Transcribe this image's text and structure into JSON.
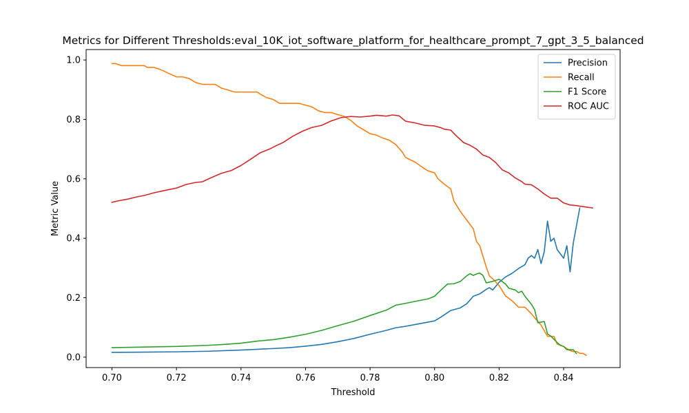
{
  "chart_data": {
    "type": "line",
    "title": "Metrics for Different Thresholds:eval_10K_iot_software_platform_for_healthcare_prompt_7_gpt_3_5_balanced",
    "xlabel": "Threshold",
    "ylabel": "Metric Value",
    "xlim": [
      0.692,
      0.8575
    ],
    "ylim": [
      -0.035,
      1.035
    ],
    "x_ticks": [
      0.7,
      0.72,
      0.74,
      0.76,
      0.78,
      0.8,
      0.82,
      0.84
    ],
    "x_tick_labels": [
      "0.70",
      "0.72",
      "0.74",
      "0.76",
      "0.78",
      "0.80",
      "0.82",
      "0.84"
    ],
    "y_ticks": [
      0.0,
      0.2,
      0.4,
      0.6,
      0.8,
      1.0
    ],
    "y_tick_labels": [
      "0.0",
      "0.2",
      "0.4",
      "0.6",
      "0.8",
      "1.0"
    ],
    "grid": false,
    "legend_position": "top-right",
    "series": [
      {
        "name": "Precision",
        "color": "#1f77b4",
        "points": [
          [
            0.7,
            0.016
          ],
          [
            0.71,
            0.017
          ],
          [
            0.72,
            0.018
          ],
          [
            0.73,
            0.02
          ],
          [
            0.74,
            0.024
          ],
          [
            0.75,
            0.029
          ],
          [
            0.755,
            0.032
          ],
          [
            0.76,
            0.037
          ],
          [
            0.765,
            0.043
          ],
          [
            0.77,
            0.052
          ],
          [
            0.775,
            0.063
          ],
          [
            0.78,
            0.077
          ],
          [
            0.785,
            0.09
          ],
          [
            0.788,
            0.099
          ],
          [
            0.79,
            0.102
          ],
          [
            0.795,
            0.112
          ],
          [
            0.8,
            0.122
          ],
          [
            0.802,
            0.135
          ],
          [
            0.805,
            0.157
          ],
          [
            0.808,
            0.166
          ],
          [
            0.81,
            0.18
          ],
          [
            0.812,
            0.205
          ],
          [
            0.814,
            0.213
          ],
          [
            0.816,
            0.228
          ],
          [
            0.817,
            0.234
          ],
          [
            0.818,
            0.226
          ],
          [
            0.82,
            0.252
          ],
          [
            0.822,
            0.27
          ],
          [
            0.824,
            0.282
          ],
          [
            0.826,
            0.298
          ],
          [
            0.828,
            0.311
          ],
          [
            0.829,
            0.333
          ],
          [
            0.83,
            0.342
          ],
          [
            0.831,
            0.333
          ],
          [
            0.832,
            0.362
          ],
          [
            0.833,
            0.315
          ],
          [
            0.834,
            0.355
          ],
          [
            0.835,
            0.458
          ],
          [
            0.836,
            0.39
          ],
          [
            0.837,
            0.4
          ],
          [
            0.838,
            0.362
          ],
          [
            0.84,
            0.333
          ],
          [
            0.841,
            0.375
          ],
          [
            0.842,
            0.287
          ],
          [
            0.843,
            0.385
          ],
          [
            0.845,
            0.502
          ]
        ]
      },
      {
        "name": "Recall",
        "color": "#ff7f0e",
        "points": [
          [
            0.7,
            0.988
          ],
          [
            0.701,
            0.988
          ],
          [
            0.703,
            0.981
          ],
          [
            0.705,
            0.981
          ],
          [
            0.71,
            0.981
          ],
          [
            0.711,
            0.975
          ],
          [
            0.713,
            0.975
          ],
          [
            0.715,
            0.968
          ],
          [
            0.72,
            0.943
          ],
          [
            0.722,
            0.943
          ],
          [
            0.724,
            0.937
          ],
          [
            0.726,
            0.924
          ],
          [
            0.728,
            0.918
          ],
          [
            0.732,
            0.918
          ],
          [
            0.734,
            0.905
          ],
          [
            0.736,
            0.899
          ],
          [
            0.738,
            0.892
          ],
          [
            0.745,
            0.892
          ],
          [
            0.746,
            0.885
          ],
          [
            0.748,
            0.873
          ],
          [
            0.75,
            0.867
          ],
          [
            0.752,
            0.854
          ],
          [
            0.758,
            0.854
          ],
          [
            0.76,
            0.848
          ],
          [
            0.762,
            0.842
          ],
          [
            0.764,
            0.829
          ],
          [
            0.766,
            0.823
          ],
          [
            0.768,
            0.823
          ],
          [
            0.77,
            0.816
          ],
          [
            0.772,
            0.81
          ],
          [
            0.774,
            0.797
          ],
          [
            0.776,
            0.778
          ],
          [
            0.778,
            0.765
          ],
          [
            0.78,
            0.752
          ],
          [
            0.782,
            0.747
          ],
          [
            0.784,
            0.737
          ],
          [
            0.786,
            0.73
          ],
          [
            0.788,
            0.715
          ],
          [
            0.79,
            0.69
          ],
          [
            0.791,
            0.672
          ],
          [
            0.794,
            0.656
          ],
          [
            0.797,
            0.633
          ],
          [
            0.798,
            0.627
          ],
          [
            0.8,
            0.62
          ],
          [
            0.801,
            0.601
          ],
          [
            0.803,
            0.582
          ],
          [
            0.805,
            0.566
          ],
          [
            0.806,
            0.525
          ],
          [
            0.808,
            0.49
          ],
          [
            0.81,
            0.461
          ],
          [
            0.812,
            0.432
          ],
          [
            0.813,
            0.389
          ],
          [
            0.814,
            0.375
          ],
          [
            0.815,
            0.339
          ],
          [
            0.816,
            0.304
          ],
          [
            0.817,
            0.273
          ],
          [
            0.818,
            0.264
          ],
          [
            0.82,
            0.241
          ],
          [
            0.822,
            0.206
          ],
          [
            0.824,
            0.19
          ],
          [
            0.826,
            0.168
          ],
          [
            0.828,
            0.168
          ],
          [
            0.83,
            0.146
          ],
          [
            0.832,
            0.12
          ],
          [
            0.833,
            0.108
          ],
          [
            0.834,
            0.089
          ],
          [
            0.835,
            0.07
          ],
          [
            0.837,
            0.07
          ],
          [
            0.838,
            0.044
          ],
          [
            0.84,
            0.036
          ],
          [
            0.842,
            0.022
          ],
          [
            0.843,
            0.019
          ],
          [
            0.844,
            0.019
          ],
          [
            0.845,
            0.013
          ],
          [
            0.846,
            0.013
          ],
          [
            0.847,
            0.006
          ]
        ]
      },
      {
        "name": "F1 Score",
        "color": "#2ca02c",
        "points": [
          [
            0.7,
            0.032
          ],
          [
            0.71,
            0.034
          ],
          [
            0.72,
            0.036
          ],
          [
            0.73,
            0.04
          ],
          [
            0.735,
            0.043
          ],
          [
            0.74,
            0.047
          ],
          [
            0.745,
            0.054
          ],
          [
            0.75,
            0.059
          ],
          [
            0.755,
            0.067
          ],
          [
            0.76,
            0.077
          ],
          [
            0.765,
            0.09
          ],
          [
            0.77,
            0.106
          ],
          [
            0.775,
            0.121
          ],
          [
            0.78,
            0.14
          ],
          [
            0.785,
            0.158
          ],
          [
            0.788,
            0.175
          ],
          [
            0.79,
            0.179
          ],
          [
            0.795,
            0.19
          ],
          [
            0.798,
            0.196
          ],
          [
            0.8,
            0.205
          ],
          [
            0.802,
            0.226
          ],
          [
            0.804,
            0.246
          ],
          [
            0.806,
            0.247
          ],
          [
            0.808,
            0.255
          ],
          [
            0.81,
            0.274
          ],
          [
            0.811,
            0.281
          ],
          [
            0.812,
            0.275
          ],
          [
            0.813,
            0.28
          ],
          [
            0.814,
            0.283
          ],
          [
            0.815,
            0.275
          ],
          [
            0.816,
            0.25
          ],
          [
            0.818,
            0.255
          ],
          [
            0.82,
            0.262
          ],
          [
            0.822,
            0.246
          ],
          [
            0.823,
            0.232
          ],
          [
            0.825,
            0.226
          ],
          [
            0.826,
            0.217
          ],
          [
            0.827,
            0.222
          ],
          [
            0.828,
            0.205
          ],
          [
            0.83,
            0.178
          ],
          [
            0.831,
            0.16
          ],
          [
            0.832,
            0.116
          ],
          [
            0.834,
            0.12
          ],
          [
            0.835,
            0.078
          ],
          [
            0.836,
            0.071
          ],
          [
            0.838,
            0.049
          ],
          [
            0.839,
            0.04
          ],
          [
            0.84,
            0.036
          ],
          [
            0.841,
            0.025
          ],
          [
            0.843,
            0.025
          ],
          [
            0.844,
            0.012
          ]
        ]
      },
      {
        "name": "ROC AUC",
        "color": "#d62728",
        "points": [
          [
            0.7,
            0.521
          ],
          [
            0.702,
            0.526
          ],
          [
            0.705,
            0.532
          ],
          [
            0.708,
            0.54
          ],
          [
            0.71,
            0.544
          ],
          [
            0.713,
            0.553
          ],
          [
            0.716,
            0.56
          ],
          [
            0.72,
            0.569
          ],
          [
            0.723,
            0.581
          ],
          [
            0.726,
            0.588
          ],
          [
            0.728,
            0.59
          ],
          [
            0.731,
            0.605
          ],
          [
            0.734,
            0.619
          ],
          [
            0.737,
            0.628
          ],
          [
            0.74,
            0.645
          ],
          [
            0.743,
            0.666
          ],
          [
            0.746,
            0.688
          ],
          [
            0.749,
            0.701
          ],
          [
            0.751,
            0.712
          ],
          [
            0.753,
            0.722
          ],
          [
            0.756,
            0.743
          ],
          [
            0.759,
            0.76
          ],
          [
            0.762,
            0.773
          ],
          [
            0.765,
            0.78
          ],
          [
            0.768,
            0.795
          ],
          [
            0.771,
            0.806
          ],
          [
            0.774,
            0.81
          ],
          [
            0.777,
            0.808
          ],
          [
            0.78,
            0.811
          ],
          [
            0.782,
            0.814
          ],
          [
            0.785,
            0.811
          ],
          [
            0.787,
            0.815
          ],
          [
            0.789,
            0.812
          ],
          [
            0.791,
            0.794
          ],
          [
            0.794,
            0.788
          ],
          [
            0.797,
            0.78
          ],
          [
            0.8,
            0.778
          ],
          [
            0.802,
            0.772
          ],
          [
            0.803,
            0.767
          ],
          [
            0.805,
            0.764
          ],
          [
            0.807,
            0.742
          ],
          [
            0.809,
            0.722
          ],
          [
            0.811,
            0.713
          ],
          [
            0.813,
            0.7
          ],
          [
            0.815,
            0.68
          ],
          [
            0.817,
            0.672
          ],
          [
            0.819,
            0.654
          ],
          [
            0.821,
            0.63
          ],
          [
            0.823,
            0.62
          ],
          [
            0.825,
            0.603
          ],
          [
            0.827,
            0.591
          ],
          [
            0.828,
            0.582
          ],
          [
            0.83,
            0.58
          ],
          [
            0.832,
            0.566
          ],
          [
            0.834,
            0.549
          ],
          [
            0.836,
            0.535
          ],
          [
            0.838,
            0.535
          ],
          [
            0.84,
            0.519
          ],
          [
            0.842,
            0.512
          ],
          [
            0.844,
            0.51
          ],
          [
            0.845,
            0.508
          ],
          [
            0.847,
            0.505
          ],
          [
            0.849,
            0.502
          ]
        ]
      }
    ]
  }
}
